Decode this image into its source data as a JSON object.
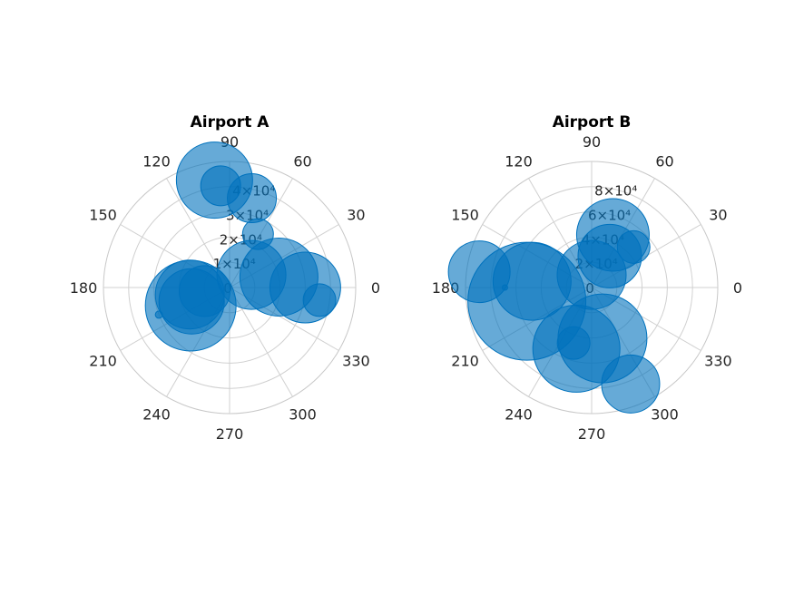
{
  "chart_data": [
    {
      "type": "scatter",
      "subtype": "polar-bubble",
      "title": "Airport A",
      "rlim": [
        0,
        50000
      ],
      "r_ticks": [
        "0",
        "1×10⁴",
        "2×10⁴",
        "3×10⁴",
        "4×10⁴"
      ],
      "theta_ticks": [
        "0",
        "30",
        "60",
        "90",
        "120",
        "150",
        "180",
        "210",
        "240",
        "270",
        "300",
        "330"
      ],
      "color": "#0072bd",
      "points": [
        {
          "theta": 98,
          "r": 43000,
          "size": 42
        },
        {
          "theta": 95,
          "r": 40500,
          "size": 22
        },
        {
          "theta": 76,
          "r": 36500,
          "size": 27
        },
        {
          "theta": 62,
          "r": 24000,
          "size": 17
        },
        {
          "theta": 30,
          "r": 10000,
          "size": 38
        },
        {
          "theta": 12,
          "r": 20000,
          "size": 43
        },
        {
          "theta": 0,
          "r": 30000,
          "size": 39
        },
        {
          "theta": 352,
          "r": 36000,
          "size": 18
        },
        {
          "theta": 188,
          "r": 10000,
          "size": 28
        },
        {
          "theta": 190,
          "r": 16000,
          "size": 38
        },
        {
          "theta": 200,
          "r": 16000,
          "size": 36
        },
        {
          "theta": 205,
          "r": 17000,
          "size": 50
        },
        {
          "theta": 201,
          "r": 30000,
          "size": 4
        }
      ]
    },
    {
      "type": "scatter",
      "subtype": "polar-bubble",
      "title": "Airport B",
      "rlim": [
        0,
        80000
      ],
      "r_ticks": [
        "0",
        "2×10⁴",
        "4×10⁴",
        "6×10⁴",
        "8×10⁴"
      ],
      "theta_ticks": [
        "0",
        "30",
        "60",
        "90",
        "120",
        "150",
        "180",
        "210",
        "240",
        "270",
        "300",
        "330"
      ],
      "color": "#0072bd",
      "points": [
        {
          "theta": 68,
          "r": 36000,
          "size": 40
        },
        {
          "theta": 44,
          "r": 37000,
          "size": 18
        },
        {
          "theta": 60,
          "r": 23000,
          "size": 35
        },
        {
          "theta": 90,
          "r": 8000,
          "size": 38
        },
        {
          "theta": 172,
          "r": 72000,
          "size": 34
        },
        {
          "theta": 174,
          "r": 38000,
          "size": 43
        },
        {
          "theta": 192,
          "r": 42000,
          "size": 65
        },
        {
          "theta": 180,
          "r": 55000,
          "size": 3
        },
        {
          "theta": 256,
          "r": 40000,
          "size": 48
        },
        {
          "theta": 282,
          "r": 33000,
          "size": 49
        },
        {
          "theta": 252,
          "r": 37000,
          "size": 18
        },
        {
          "theta": 292,
          "r": 66000,
          "size": 32
        }
      ]
    }
  ]
}
